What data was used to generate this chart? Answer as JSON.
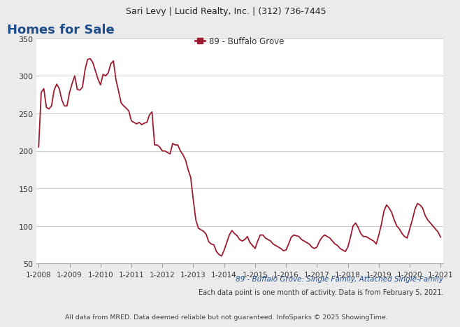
{
  "title_header": "Sari Levy | Lucid Realty, Inc. | (312) 736-7445",
  "chart_title": "Homes for Sale",
  "legend_label": "89 - Buffalo Grove",
  "subtitle": "89 - Buffalo Grove: Single Family, Attached Single-Family",
  "note1": "Each data point is one month of activity. Data is from February 5, 2021.",
  "note2": "All data from MRED. Data deemed reliable but not guaranteed. InfoSparks © 2025 ShowingTime.",
  "line_color": "#9b1c2e",
  "background_color": "#ebebeb",
  "plot_background": "#ffffff",
  "ylim": [
    50,
    350
  ],
  "yticks": [
    50,
    100,
    150,
    200,
    250,
    300,
    350
  ],
  "subtitle_color": "#1f4e8c",
  "title_color": "#1f4e8c",
  "values": [
    205,
    278,
    283,
    258,
    256,
    260,
    281,
    289,
    283,
    268,
    260,
    260,
    278,
    290,
    300,
    282,
    281,
    285,
    308,
    322,
    323,
    318,
    307,
    296,
    288,
    302,
    300,
    304,
    316,
    320,
    295,
    280,
    264,
    260,
    257,
    253,
    240,
    238,
    236,
    238,
    235,
    237,
    238,
    248,
    252,
    208,
    208,
    205,
    200,
    200,
    198,
    196,
    210,
    208,
    208,
    200,
    195,
    188,
    175,
    165,
    135,
    108,
    97,
    95,
    93,
    89,
    79,
    76,
    75,
    66,
    62,
    60,
    68,
    78,
    88,
    94,
    90,
    87,
    82,
    80,
    82,
    86,
    78,
    74,
    70,
    80,
    88,
    88,
    84,
    82,
    80,
    76,
    74,
    72,
    70,
    67,
    68,
    76,
    85,
    88,
    87,
    86,
    82,
    80,
    78,
    76,
    72,
    70,
    72,
    80,
    85,
    88,
    86,
    84,
    80,
    76,
    74,
    70,
    68,
    66,
    72,
    85,
    100,
    104,
    98,
    90,
    86,
    86,
    84,
    82,
    80,
    76,
    88,
    102,
    120,
    128,
    124,
    118,
    108,
    100,
    96,
    90,
    86,
    84,
    96,
    108,
    122,
    130,
    128,
    124,
    114,
    108,
    104,
    100,
    96,
    92,
    85
  ],
  "x_tick_labels": [
    "1-2008",
    "1-2009",
    "1-2010",
    "1-2011",
    "1-2012",
    "1-2013",
    "1-2014",
    "1-2015",
    "1-2016",
    "1-2017",
    "1-2018",
    "1-2019",
    "1-2020",
    "1-2021"
  ]
}
